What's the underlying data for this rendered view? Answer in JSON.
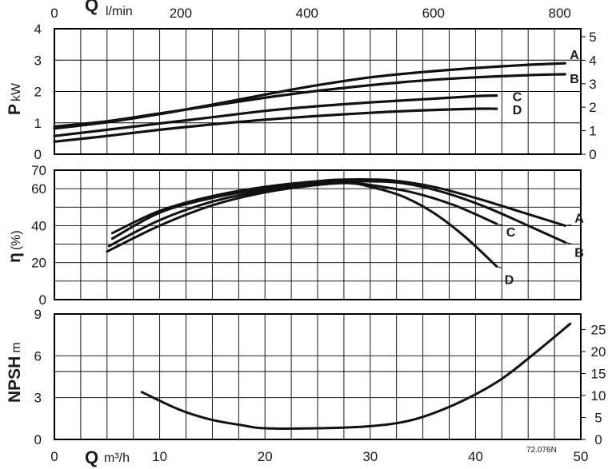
{
  "chart_data": [
    {
      "type": "line",
      "panel": "power",
      "ylabel_main": "P",
      "ylabel_unit": "kW",
      "ylim": [
        0,
        4
      ],
      "yticks_left": [
        "0",
        "1",
        "2",
        "3",
        "4"
      ],
      "yticks_right": [
        "0",
        "1",
        "2",
        "3",
        "4",
        "5"
      ],
      "xlim": [
        0,
        50
      ],
      "top_axis": {
        "label": "Q",
        "unit": "l/min",
        "ticks": [
          "0",
          "200",
          "400",
          "600",
          "800"
        ]
      },
      "series": [
        {
          "name": "A",
          "x": [
            0,
            5,
            10,
            15,
            20,
            25,
            30,
            35,
            40,
            45,
            48.5
          ],
          "values": [
            0.82,
            1.02,
            1.28,
            1.58,
            1.9,
            2.2,
            2.45,
            2.62,
            2.75,
            2.85,
            2.9
          ]
        },
        {
          "name": "B",
          "x": [
            0,
            5,
            10,
            15,
            20,
            25,
            30,
            35,
            40,
            45,
            48.5
          ],
          "values": [
            0.88,
            1.05,
            1.3,
            1.55,
            1.8,
            2.02,
            2.2,
            2.35,
            2.45,
            2.52,
            2.55
          ]
        },
        {
          "name": "C",
          "x": [
            0,
            5,
            10,
            15,
            20,
            25,
            30,
            35,
            40,
            42
          ],
          "values": [
            0.58,
            0.78,
            0.98,
            1.18,
            1.38,
            1.53,
            1.65,
            1.75,
            1.85,
            1.87
          ]
        },
        {
          "name": "D",
          "x": [
            0,
            5,
            10,
            15,
            20,
            25,
            30,
            35,
            40,
            42
          ],
          "values": [
            0.4,
            0.58,
            0.78,
            0.95,
            1.1,
            1.22,
            1.32,
            1.4,
            1.45,
            1.45
          ]
        }
      ]
    },
    {
      "type": "line",
      "panel": "efficiency",
      "ylabel_main": "η",
      "ylabel_unit": "(%)",
      "ylim": [
        0,
        70
      ],
      "yticks_left": [
        "0",
        "20",
        "40",
        "60",
        "70"
      ],
      "xlim": [
        0,
        50
      ],
      "series": [
        {
          "name": "A",
          "x": [
            5.5,
            10,
            15,
            20,
            25,
            28,
            32,
            36,
            40,
            44,
            48.5
          ],
          "values": [
            33,
            47,
            55,
            60,
            64,
            65,
            64.5,
            61,
            55,
            48,
            40
          ]
        },
        {
          "name": "B",
          "x": [
            5.2,
            10,
            15,
            20,
            25,
            29,
            33,
            37,
            41,
            45,
            48.5
          ],
          "values": [
            29,
            43,
            53,
            59,
            63,
            64,
            63,
            58,
            50,
            40,
            31
          ]
        },
        {
          "name": "C",
          "x": [
            5.5,
            10,
            15,
            20,
            25,
            27,
            30,
            34,
            38,
            42
          ],
          "values": [
            36,
            48,
            56,
            61,
            64,
            64,
            62,
            58,
            51,
            41
          ]
        },
        {
          "name": "D",
          "x": [
            5,
            10,
            15,
            20,
            25,
            28,
            30,
            33,
            36,
            39,
            42
          ],
          "values": [
            26,
            40,
            51,
            58,
            62,
            63,
            61,
            56,
            47,
            34,
            18
          ]
        }
      ]
    },
    {
      "type": "line",
      "panel": "npsh",
      "ylabel_main": "NPSH",
      "ylabel_unit": "m",
      "ylim": [
        0,
        9
      ],
      "yticks_left": [
        "0",
        "3",
        "6",
        "9"
      ],
      "yticks_right": [
        "0",
        "5",
        "10",
        "15",
        "20",
        "25"
      ],
      "xlim": [
        0,
        50
      ],
      "xaxis": {
        "label": "Q",
        "unit": "m³/h",
        "ticks": [
          "0",
          "10",
          "20",
          "30",
          "40",
          "50"
        ]
      },
      "series": [
        {
          "name": "",
          "x": [
            8.3,
            12,
            15,
            18,
            20,
            25,
            30,
            34,
            38,
            42,
            45,
            49
          ],
          "values": [
            3.4,
            2.1,
            1.4,
            1.0,
            0.8,
            0.8,
            0.95,
            1.4,
            2.5,
            4.1,
            5.8,
            8.3
          ]
        }
      ]
    }
  ],
  "figure_ref": "72.076N"
}
